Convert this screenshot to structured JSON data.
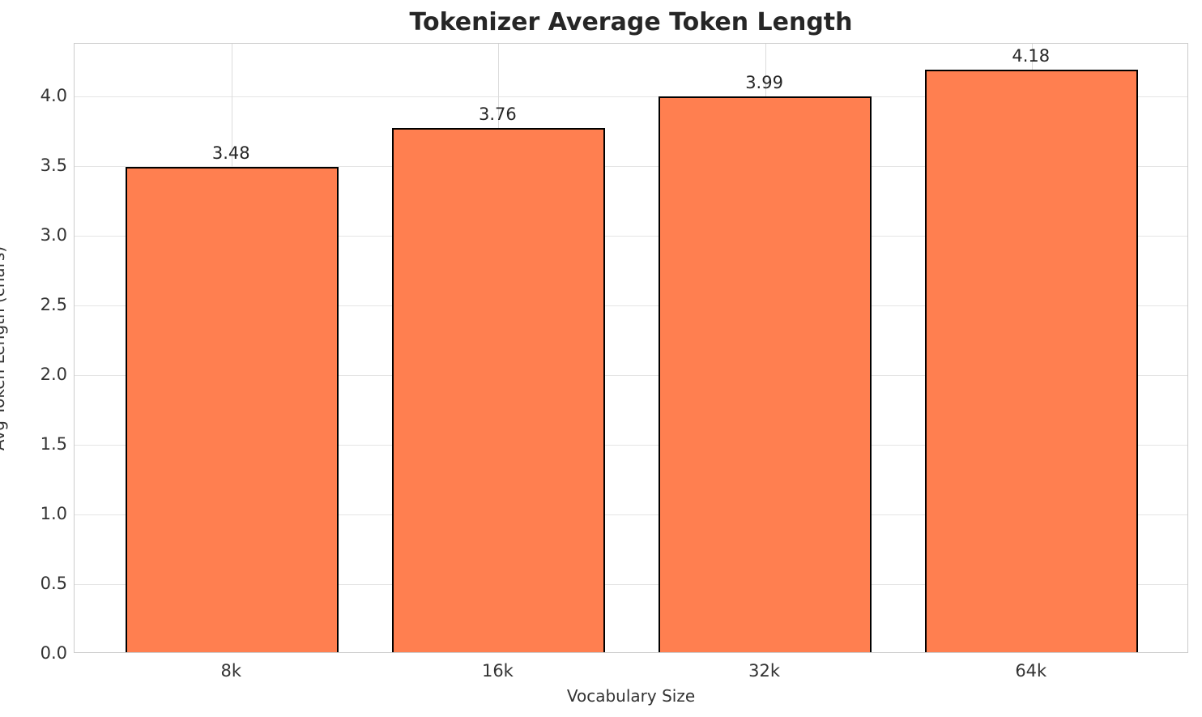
{
  "chart_data": {
    "type": "bar",
    "title": "Tokenizer Average Token Length",
    "xlabel": "Vocabulary Size",
    "ylabel": "Avg Token Length (chars)",
    "categories": [
      "8k",
      "16k",
      "32k",
      "64k"
    ],
    "values": [
      3.48,
      3.76,
      3.99,
      4.18
    ],
    "value_labels": [
      "3.48",
      "3.76",
      "3.99",
      "4.18"
    ],
    "ytick_labels": [
      "0.0",
      "0.5",
      "1.0",
      "1.5",
      "2.0",
      "2.5",
      "3.0",
      "3.5",
      "4.0"
    ],
    "yticks": [
      0.0,
      0.5,
      1.0,
      1.5,
      2.0,
      2.5,
      3.0,
      3.5,
      4.0
    ],
    "ylim": [
      0,
      4.378
    ],
    "grid": true,
    "legend": null,
    "bar_color": "#FF7F50",
    "bar_edge_color": "#000000",
    "grid_color": "#e5e5e5",
    "title_color": "#262626",
    "tick_color": "#333333"
  }
}
